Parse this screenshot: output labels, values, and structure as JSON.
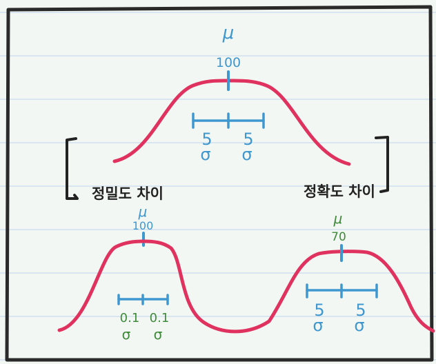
{
  "colors": {
    "background": "#f3f7f3",
    "ruled_line": "#c9dcef",
    "frame": "#2a2a2a",
    "curve": "#e0325f",
    "blue": "#3f97cf",
    "green": "#3f8a3a",
    "bracket": "#222222"
  },
  "top_curve": {
    "mu_symbol": "μ",
    "mean_value": "100",
    "left_sd": {
      "number": "5",
      "symbol": "σ"
    },
    "right_sd": {
      "number": "5",
      "symbol": "σ"
    }
  },
  "left_label": "정밀도 차이",
  "right_label": "정확도 차이",
  "bottom_left_curve": {
    "mu_symbol": "μ",
    "mean_value": "100",
    "left_sd": {
      "number": "0.1",
      "symbol": "σ"
    },
    "right_sd": {
      "number": "0.1",
      "symbol": "σ"
    }
  },
  "bottom_right_curve": {
    "mu_symbol": "μ",
    "mean_value": "70",
    "left_sd": {
      "number": "5",
      "symbol": "σ"
    },
    "right_sd": {
      "number": "5",
      "symbol": "σ"
    }
  }
}
